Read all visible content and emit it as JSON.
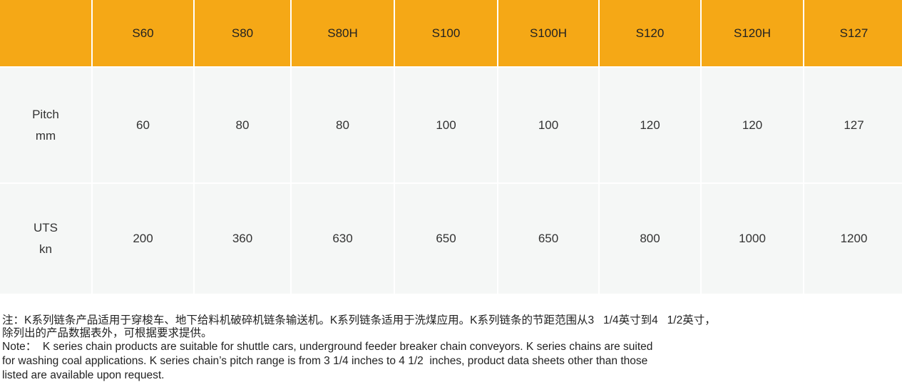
{
  "table": {
    "headers": [
      "",
      "S60",
      "S80",
      "S80H",
      "S100",
      "S100H",
      "S120",
      "S120H",
      "S127"
    ],
    "rows": [
      {
        "label": [
          "Pitch",
          "mm"
        ],
        "values": [
          "60",
          "80",
          "80",
          "100",
          "100",
          "120",
          "120",
          "127"
        ]
      },
      {
        "label": [
          "UTS",
          "kn"
        ],
        "values": [
          "200",
          "360",
          "630",
          "650",
          "650",
          "800",
          "1000",
          "1200"
        ]
      }
    ]
  },
  "notes": {
    "zh_line1": "注：K系列链条产品适用于穿梭车、地下给料机破碎机链条输送机。K系列链条适用于洗煤应用。K系列链条的节距范围从3   1/4英寸到4   1/2英寸，",
    "zh_line2": "除列出的产品数据表外，可根据要求提供。",
    "en_line1": "Note：  K series chain products are suitable for shuttle cars, underground feeder breaker chain conveyors. K series chains are suited",
    "en_line2": "for washing coal applications. K series chain’s pitch range is from 3 1/4 inches to 4 1/2  inches, product data sheets other than those",
    "en_line3": "listed are available upon request."
  },
  "colors": {
    "header_bg": "#F5A816",
    "cell_bg": "#F5F7F6"
  }
}
